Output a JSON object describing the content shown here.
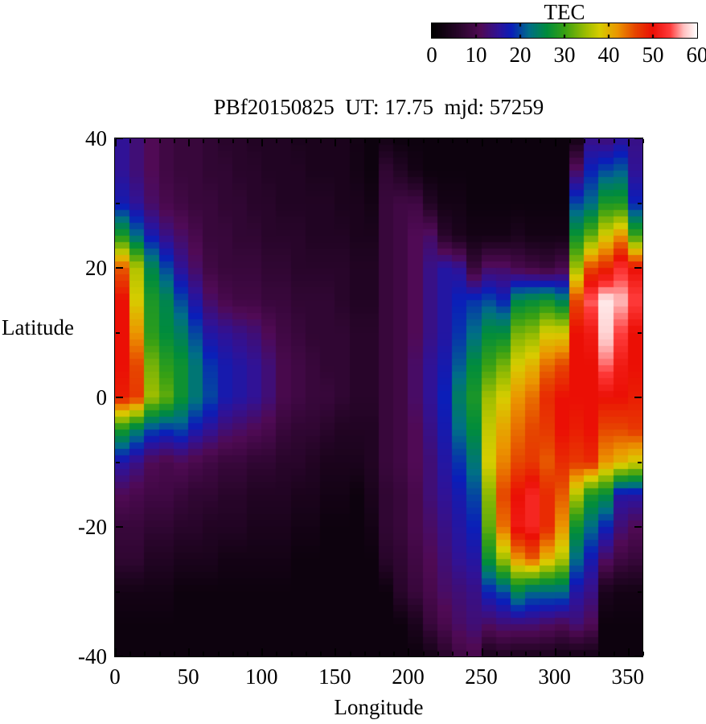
{
  "title": "PBf20150825  UT: 17.75  mjd: 57259",
  "colorbar": {
    "label": "TEC",
    "min": 0,
    "max": 60,
    "tick_labels": [
      0,
      10,
      20,
      30,
      40,
      50,
      60
    ]
  },
  "axes": {
    "xlabel": "Longitude",
    "ylabel": "Latitude",
    "xlim": [
      0,
      360
    ],
    "ylim": [
      -40,
      40
    ],
    "xticks": [
      0,
      50,
      100,
      150,
      200,
      250,
      300,
      350
    ],
    "yticks": [
      40,
      20,
      0,
      -20,
      -40
    ],
    "x_minor_step": 10,
    "y_minor_step": 10
  },
  "colors": {
    "background": "#ffffff",
    "foreground": "#000000",
    "border": "#000000"
  },
  "chart_data": {
    "type": "heatmap",
    "value_name": "TEC",
    "x_label": "Longitude",
    "y_label": "Latitude",
    "x": [
      0,
      10,
      20,
      30,
      40,
      50,
      60,
      70,
      80,
      90,
      100,
      110,
      120,
      130,
      140,
      150,
      160,
      170,
      180,
      190,
      200,
      210,
      220,
      230,
      240,
      250,
      260,
      270,
      280,
      290,
      300,
      310,
      320,
      330,
      340,
      350,
      360
    ],
    "y": [
      40,
      35,
      30,
      25,
      20,
      15,
      10,
      5,
      0,
      -5,
      -10,
      -15,
      -20,
      -25,
      -30,
      -35,
      -40
    ],
    "values": [
      [
        15,
        13,
        11,
        9,
        8,
        8,
        7,
        6,
        6,
        5,
        5,
        5,
        4,
        4,
        4,
        4,
        3,
        2,
        3,
        2,
        2,
        2,
        2,
        2,
        2,
        2,
        2,
        2,
        2,
        2,
        2,
        3,
        14,
        13,
        15,
        14,
        15
      ],
      [
        15,
        13,
        11,
        9,
        8,
        8,
        7,
        7,
        6,
        6,
        5,
        5,
        5,
        4,
        4,
        4,
        3,
        2,
        7,
        5,
        3,
        2,
        2,
        2,
        2,
        2,
        2,
        2,
        2,
        2,
        2,
        12,
        18,
        20,
        21,
        15,
        15
      ],
      [
        17,
        15,
        12,
        10,
        9,
        8,
        8,
        7,
        7,
        6,
        6,
        5,
        5,
        5,
        5,
        4,
        4,
        3,
        8,
        9,
        9,
        5,
        3,
        3,
        2,
        2,
        2,
        2,
        2,
        2,
        2,
        20,
        22,
        28,
        28,
        18,
        17
      ],
      [
        28,
        22,
        17,
        14,
        12,
        10,
        8,
        8,
        7,
        7,
        6,
        6,
        6,
        5,
        5,
        5,
        4,
        4,
        8,
        9,
        11,
        12,
        6,
        4,
        3,
        3,
        3,
        4,
        3,
        3,
        3,
        27,
        32,
        38,
        42,
        30,
        28
      ],
      [
        45,
        36,
        25,
        20,
        15,
        12,
        9,
        8,
        8,
        8,
        7,
        7,
        6,
        6,
        6,
        6,
        5,
        5,
        8,
        9,
        11,
        14,
        16,
        15,
        8,
        12,
        12,
        10,
        9,
        8,
        10,
        35,
        46,
        48,
        53,
        50,
        45
      ],
      [
        50,
        38,
        28,
        25,
        20,
        16,
        12,
        10,
        9,
        9,
        8,
        8,
        7,
        7,
        7,
        6,
        5,
        5,
        8,
        9,
        11,
        14,
        16,
        18,
        19,
        20,
        18,
        25,
        26,
        27,
        24,
        46,
        55,
        59,
        57,
        54,
        50
      ],
      [
        50,
        42,
        29,
        26,
        24,
        20,
        16,
        15,
        14,
        13,
        11,
        9,
        8,
        7,
        7,
        7,
        6,
        6,
        8,
        9,
        11,
        14,
        16,
        19,
        22,
        26,
        26,
        33,
        34,
        38,
        38,
        50,
        51,
        58,
        54,
        50,
        50
      ],
      [
        50,
        46,
        33,
        29,
        27,
        23,
        19,
        17,
        16,
        15,
        13,
        10,
        9,
        8,
        7,
        7,
        6,
        6,
        8,
        9,
        12,
        15,
        17,
        21,
        26,
        30,
        33,
        38,
        40,
        44,
        46,
        50,
        50,
        55,
        51,
        50,
        50
      ],
      [
        49,
        47,
        35,
        32,
        27,
        23,
        20,
        17,
        16,
        15,
        13,
        10,
        9,
        8,
        8,
        7,
        6,
        6,
        8,
        9,
        12,
        15,
        18,
        24,
        28,
        35,
        38,
        42,
        44,
        48,
        50,
        50,
        50,
        50,
        50,
        49,
        49
      ],
      [
        28,
        24,
        20,
        19,
        20,
        17,
        15,
        13,
        12,
        11,
        10,
        8,
        7,
        7,
        6,
        5,
        5,
        5,
        8,
        9,
        11,
        14,
        17,
        22,
        26,
        37,
        41,
        44,
        46,
        47,
        50,
        49,
        50,
        46,
        46,
        47,
        28
      ],
      [
        16,
        14,
        11,
        10,
        11,
        10,
        9,
        8,
        8,
        7,
        7,
        6,
        6,
        5,
        4,
        4,
        4,
        5,
        8,
        9,
        11,
        13,
        16,
        19,
        23,
        38,
        43,
        46,
        47,
        45,
        48,
        47,
        48,
        42,
        40,
        38,
        16
      ],
      [
        11,
        10,
        9,
        9,
        8,
        7,
        7,
        6,
        6,
        5,
        5,
        5,
        4,
        4,
        3,
        3,
        2,
        4,
        7,
        8,
        10,
        13,
        15,
        17,
        20,
        34,
        46,
        50,
        52,
        48,
        45,
        36,
        28,
        26,
        16,
        16,
        11
      ],
      [
        8,
        8,
        7,
        7,
        6,
        6,
        5,
        5,
        5,
        4,
        4,
        4,
        3,
        3,
        2,
        2,
        2,
        3,
        7,
        8,
        10,
        12,
        14,
        16,
        18,
        32,
        44,
        51,
        52,
        48,
        42,
        27,
        22,
        18,
        13,
        11,
        8
      ],
      [
        7,
        7,
        5,
        5,
        4,
        4,
        4,
        3,
        3,
        3,
        3,
        3,
        2,
        2,
        2,
        2,
        2,
        2,
        6,
        7,
        9,
        11,
        13,
        15,
        16,
        27,
        35,
        42,
        45,
        40,
        36,
        22,
        17,
        12,
        9,
        8,
        7
      ],
      [
        3,
        3,
        3,
        3,
        2,
        2,
        2,
        2,
        2,
        2,
        2,
        2,
        2,
        2,
        2,
        2,
        2,
        2,
        2,
        6,
        8,
        10,
        12,
        13,
        14,
        18,
        20,
        25,
        22,
        22,
        22,
        16,
        14,
        4,
        3,
        3,
        3
      ],
      [
        2,
        2,
        2,
        2,
        2,
        2,
        2,
        2,
        2,
        2,
        2,
        2,
        2,
        2,
        2,
        2,
        2,
        2,
        2,
        2,
        4,
        8,
        10,
        12,
        13,
        12,
        13,
        13,
        13,
        12,
        11,
        13,
        11,
        2,
        2,
        2,
        2
      ],
      [
        2,
        2,
        2,
        2,
        2,
        2,
        2,
        2,
        2,
        2,
        2,
        2,
        2,
        2,
        2,
        2,
        2,
        2,
        2,
        2,
        2,
        3,
        6,
        9,
        10,
        4,
        5,
        4,
        4,
        4,
        3,
        3,
        3,
        2,
        2,
        2,
        2
      ]
    ],
    "palette_range": [
      0,
      60
    ],
    "palette_stops": [
      [
        0,
        [
          0,
          0,
          0
        ]
      ],
      [
        6,
        [
          40,
          5,
          42
        ]
      ],
      [
        11,
        [
          80,
          10,
          85
        ]
      ],
      [
        15,
        [
          48,
          18,
          150
        ]
      ],
      [
        18,
        [
          10,
          30,
          185
        ]
      ],
      [
        22,
        [
          0,
          110,
          135
        ]
      ],
      [
        26,
        [
          0,
          140,
          60
        ]
      ],
      [
        30,
        [
          55,
          160,
          20
        ]
      ],
      [
        35,
        [
          160,
          190,
          0
        ]
      ],
      [
        38,
        [
          215,
          205,
          0
        ]
      ],
      [
        42,
        [
          235,
          150,
          0
        ]
      ],
      [
        46,
        [
          230,
          70,
          0
        ]
      ],
      [
        50,
        [
          235,
          15,
          5
        ]
      ],
      [
        54,
        [
          255,
          60,
          60
        ]
      ],
      [
        57,
        [
          255,
          190,
          190
        ]
      ],
      [
        60,
        [
          255,
          255,
          255
        ]
      ]
    ]
  }
}
